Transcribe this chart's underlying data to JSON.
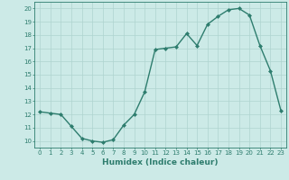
{
  "x": [
    0,
    1,
    2,
    3,
    4,
    5,
    6,
    7,
    8,
    9,
    10,
    11,
    12,
    13,
    14,
    15,
    16,
    17,
    18,
    19,
    20,
    21,
    22,
    23
  ],
  "y": [
    12.2,
    12.1,
    12.0,
    11.1,
    10.2,
    10.0,
    9.9,
    10.1,
    11.2,
    12.0,
    13.7,
    16.9,
    17.0,
    17.1,
    18.1,
    17.2,
    18.8,
    19.4,
    19.9,
    20.0,
    19.5,
    17.2,
    15.3,
    12.3
  ],
  "line_color": "#2e7d6e",
  "marker": "D",
  "markersize": 2.0,
  "linewidth": 1.0,
  "bg_color": "#cceae7",
  "grid_color": "#aed4d0",
  "xlabel": "Humidex (Indice chaleur)",
  "xlim": [
    -0.5,
    23.5
  ],
  "ylim": [
    9.5,
    20.5
  ],
  "yticks": [
    10,
    11,
    12,
    13,
    14,
    15,
    16,
    17,
    18,
    19,
    20
  ],
  "xticks": [
    0,
    1,
    2,
    3,
    4,
    5,
    6,
    7,
    8,
    9,
    10,
    11,
    12,
    13,
    14,
    15,
    16,
    17,
    18,
    19,
    20,
    21,
    22,
    23
  ],
  "tick_color": "#2e7d6e",
  "tick_fontsize": 5.0,
  "xlabel_fontsize": 6.5,
  "xlabel_color": "#2e7d6e",
  "axis_color": "#2e7d6e"
}
